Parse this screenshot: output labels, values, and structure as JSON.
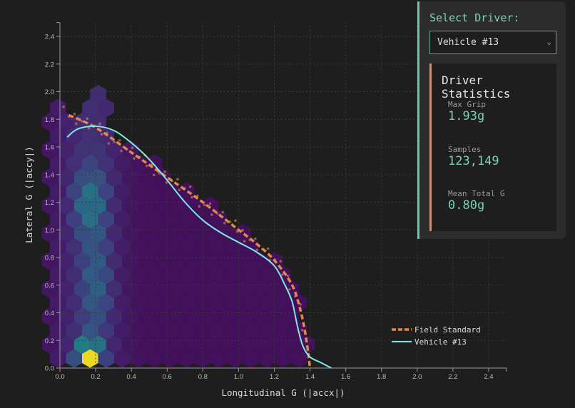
{
  "panel": {
    "select_label": "Select Driver:",
    "selected_driver": "Vehicle #13",
    "stats_title": "Driver Statistics",
    "stats": [
      {
        "label": "Max Grip",
        "value": "1.93g"
      },
      {
        "label": "Samples",
        "value": "123,149"
      },
      {
        "label": "Mean Total G",
        "value": "0.80g"
      }
    ]
  },
  "colors": {
    "background": "#1e1e1e",
    "panel_bg": "#2c2c2c",
    "accent_teal": "#6fc4ab",
    "accent_orange": "#e08850",
    "vehicle_line": "#7ee8e8",
    "stats_border": "#c9917a"
  },
  "chart_data": {
    "type": "hexbin+line",
    "title": "",
    "xlabel": "Longitudinal G (|accx|)",
    "ylabel": "Lateral G (|accy|)",
    "xlim": [
      0,
      2.5
    ],
    "ylim": [
      0,
      2.5
    ],
    "x_ticks": [
      "0.0",
      "0.2",
      "0.4",
      "0.6",
      "0.8",
      "1.0",
      "1.2",
      "1.4",
      "1.6",
      "1.8",
      "2.0",
      "2.2",
      "2.4"
    ],
    "y_ticks": [
      "0.0",
      "0.2",
      "0.4",
      "0.6",
      "0.8",
      "1.0",
      "1.2",
      "1.4",
      "1.6",
      "1.8",
      "2.0",
      "2.2",
      "2.4"
    ],
    "grid": true,
    "legend_position": "lower right",
    "legend": [
      "Field Standard",
      "Vehicle #13"
    ],
    "series": [
      {
        "name": "Field Standard",
        "style": "dashed",
        "color": "#e08850",
        "x": [
          0.05,
          0.2,
          0.4,
          0.6,
          0.8,
          1.0,
          1.1,
          1.2,
          1.3,
          1.35,
          1.38,
          1.4
        ],
        "y": [
          1.83,
          1.74,
          1.56,
          1.38,
          1.2,
          1.0,
          0.9,
          0.78,
          0.6,
          0.4,
          0.2,
          0.0
        ]
      },
      {
        "name": "Vehicle #13",
        "style": "solid",
        "color": "#7ee8e8",
        "x": [
          0.04,
          0.1,
          0.2,
          0.3,
          0.4,
          0.5,
          0.6,
          0.7,
          0.8,
          0.9,
          1.0,
          1.1,
          1.2,
          1.26,
          1.3,
          1.33,
          1.36,
          1.4,
          1.46,
          1.52
        ],
        "y": [
          1.67,
          1.73,
          1.75,
          1.72,
          1.63,
          1.51,
          1.36,
          1.2,
          1.07,
          0.98,
          0.91,
          0.84,
          0.74,
          0.6,
          0.48,
          0.3,
          0.16,
          0.08,
          0.04,
          0.0
        ]
      }
    ],
    "hexbin": {
      "colormap": "viridis",
      "extent": "density concentrated near x≈0.15-0.2, peak at (0.16, 0.1); secondary cluster at (0.17, 1.2); envelope up to ~2.0g lateral"
    }
  }
}
